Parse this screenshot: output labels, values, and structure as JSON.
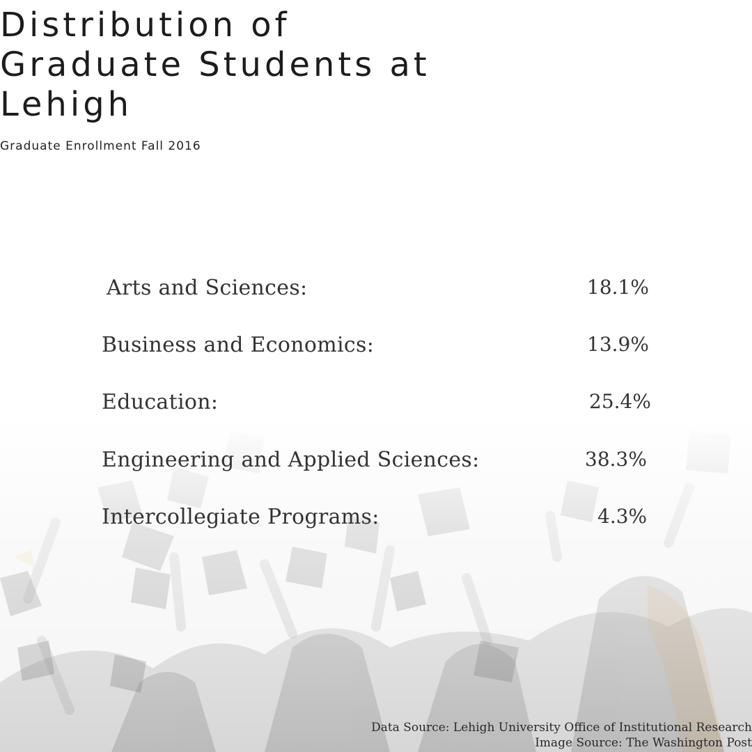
{
  "title": "Distribution of Graduate Students at Lehigh",
  "subtitle": "Graduate Enrollment Fall 2016",
  "chart_data": {
    "type": "table",
    "title": "Distribution of Graduate Students at Lehigh",
    "subtitle": "Graduate Enrollment Fall 2016",
    "categories": [
      "Arts and Sciences:",
      "Business and Economics:",
      "Education:",
      "Engineering and Applied Sciences:",
      "Intercollegiate Programs:"
    ],
    "values": [
      18.1,
      13.9,
      25.4,
      38.3,
      4.3
    ],
    "value_labels": [
      "18.1%",
      "13.9%",
      "25.4%",
      "38.3%",
      "4.3%"
    ],
    "unit": "%"
  },
  "footer": {
    "data_source": "Data Source: Lehigh University Office of Institutional Research",
    "image_source": "Image Source: The Washington Post"
  },
  "colors": {
    "text": "#2b2b2b",
    "background": "#ffffff",
    "photo_tint": "#d9d9d9"
  }
}
